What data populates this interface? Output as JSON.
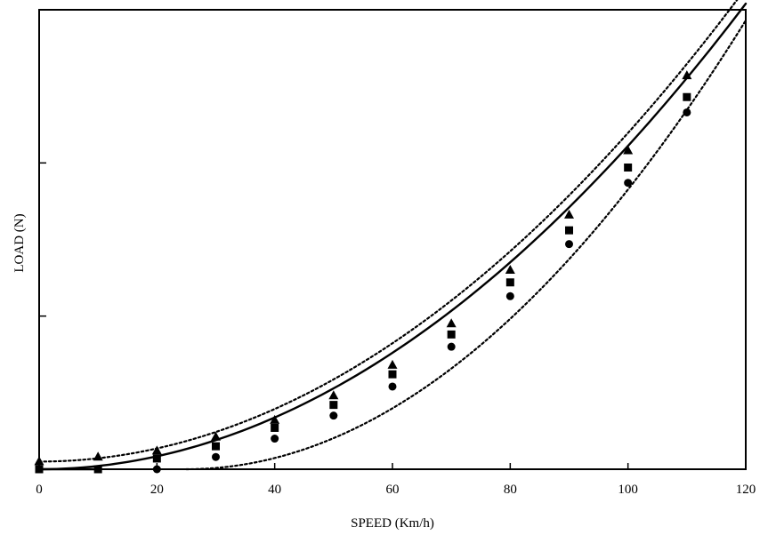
{
  "chart_data": {
    "type": "line",
    "xlabel": "SPEED (Km/h)",
    "ylabel": "LOAD (N)",
    "xlim": [
      0,
      120
    ],
    "ylim": [
      0,
      3
    ],
    "x_ticks": [
      "0",
      "20",
      "40",
      "60",
      "80",
      "100",
      "120"
    ],
    "x_tick_values": [
      0,
      20,
      40,
      60,
      80,
      100,
      120
    ],
    "y_tick_values": [
      0,
      1,
      2,
      3
    ],
    "y_tick_labels_shown": false,
    "grid": false,
    "legend": "none",
    "colors": {
      "line": "#000000",
      "axis": "#000000"
    },
    "series": [
      {
        "marker": "triangle",
        "line_style": "dotted",
        "x": [
          0,
          10,
          20,
          30,
          40,
          50,
          60,
          70,
          80,
          90,
          100,
          110
        ],
        "y": [
          0.05,
          0.08,
          0.12,
          0.21,
          0.32,
          0.48,
          0.68,
          0.95,
          1.3,
          1.66,
          2.08,
          2.57
        ],
        "fit": {
          "x_start": 0,
          "x_end": 120,
          "y_start": 0.05,
          "y_end": 3.14
        }
      },
      {
        "marker": "square",
        "line_style": "solid",
        "x": [
          0,
          10,
          20,
          30,
          40,
          50,
          60,
          70,
          80,
          90,
          100,
          110
        ],
        "y": [
          0.0,
          0.0,
          0.07,
          0.15,
          0.27,
          0.42,
          0.62,
          0.88,
          1.22,
          1.56,
          1.97,
          2.43
        ],
        "fit": {
          "x_start": 0,
          "x_end": 120,
          "y_start": 0.0,
          "y_end": 3.04
        }
      },
      {
        "marker": "circle",
        "line_style": "dotted",
        "x": [
          20,
          30,
          40,
          50,
          60,
          70,
          80,
          90,
          100,
          110
        ],
        "y": [
          0.0,
          0.08,
          0.2,
          0.35,
          0.54,
          0.8,
          1.13,
          1.47,
          1.87,
          2.33
        ],
        "fit": {
          "x_start": 25,
          "x_end": 120,
          "y_start": 0.0,
          "y_end": 2.93
        }
      }
    ]
  }
}
